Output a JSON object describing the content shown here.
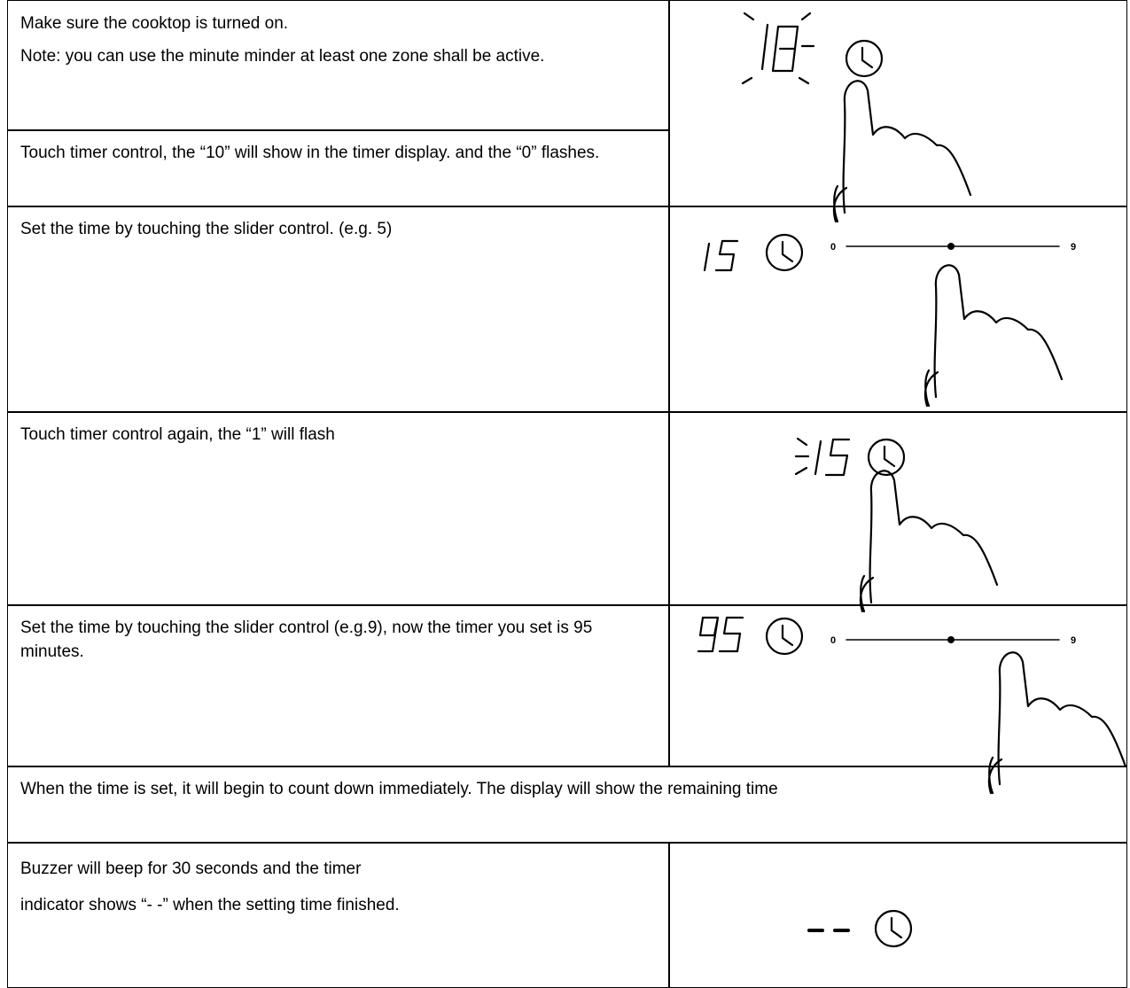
{
  "table": {
    "rows": [
      {
        "text": [
          "Make sure the cooktop is turned on.",
          "Note: you can use the minute minder at least one zone shall be active."
        ]
      },
      {
        "text": [
          "Touch timer control, the “10” will show in the timer display. and the “0” flashes."
        ]
      },
      {
        "text": [
          "Set the time by touching the slider control. (e.g. 5)"
        ],
        "slider": [
          "0",
          "9"
        ]
      },
      {
        "text": [
          "Touch timer control again, the “1” will flash"
        ]
      },
      {
        "text": [
          "Set the time by touching the slider control (e.g.9), now the timer you set is 95 minutes."
        ],
        "slider": [
          "0",
          "9"
        ]
      },
      {
        "text": [
          "When the time is set, it will begin to count down immediately. The display will show the remaining time"
        ]
      },
      {
        "text": [
          "Buzzer will beep for 30 seconds and the timer",
          "indicator shows “- -” when the setting time finished."
        ]
      }
    ]
  }
}
